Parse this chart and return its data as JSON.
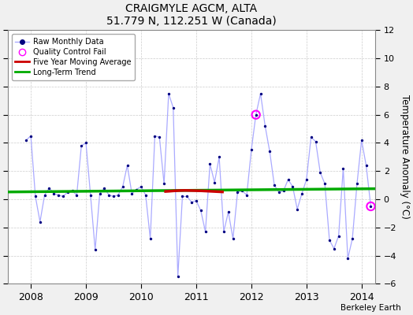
{
  "title": "CRAIGMYLE AGCM, ALTA",
  "subtitle": "51.779 N, 112.251 W (Canada)",
  "ylabel": "Temperature Anomaly (°C)",
  "credit": "Berkeley Earth",
  "ylim": [
    -6,
    12
  ],
  "yticks": [
    -6,
    -4,
    -2,
    0,
    2,
    4,
    6,
    8,
    10,
    12
  ],
  "xlim_start": 2007.58,
  "xlim_end": 2014.25,
  "fig_bg_color": "#f0f0f0",
  "plot_bg_color": "#ffffff",
  "raw_line_color": "#aaaaff",
  "dot_color": "#000080",
  "ma_color": "#cc0000",
  "trend_color": "#00aa00",
  "qc_color": "#ff00ff",
  "grid_color": "#cccccc",
  "monthly_data": [
    [
      2007.917,
      4.2
    ],
    [
      2008.0,
      4.5
    ],
    [
      2008.083,
      0.2
    ],
    [
      2008.167,
      -1.6
    ],
    [
      2008.25,
      0.3
    ],
    [
      2008.333,
      0.8
    ],
    [
      2008.417,
      0.4
    ],
    [
      2008.5,
      0.3
    ],
    [
      2008.583,
      0.2
    ],
    [
      2008.667,
      0.5
    ],
    [
      2008.75,
      0.6
    ],
    [
      2008.833,
      0.3
    ],
    [
      2008.917,
      3.8
    ],
    [
      2009.0,
      4.0
    ],
    [
      2009.083,
      0.3
    ],
    [
      2009.167,
      -3.6
    ],
    [
      2009.25,
      0.4
    ],
    [
      2009.333,
      0.8
    ],
    [
      2009.417,
      0.3
    ],
    [
      2009.5,
      0.2
    ],
    [
      2009.583,
      0.3
    ],
    [
      2009.667,
      0.9
    ],
    [
      2009.75,
      2.4
    ],
    [
      2009.833,
      0.4
    ],
    [
      2009.917,
      0.7
    ],
    [
      2010.0,
      0.9
    ],
    [
      2010.083,
      0.3
    ],
    [
      2010.167,
      -2.8
    ],
    [
      2010.25,
      4.5
    ],
    [
      2010.333,
      4.4
    ],
    [
      2010.417,
      1.1
    ],
    [
      2010.5,
      7.5
    ],
    [
      2010.583,
      6.5
    ],
    [
      2010.667,
      -5.5
    ],
    [
      2010.75,
      0.2
    ],
    [
      2010.833,
      0.2
    ],
    [
      2010.917,
      -0.2
    ],
    [
      2011.0,
      -0.1
    ],
    [
      2011.083,
      -0.8
    ],
    [
      2011.167,
      -2.3
    ],
    [
      2011.25,
      2.5
    ],
    [
      2011.333,
      1.2
    ],
    [
      2011.417,
      3.0
    ],
    [
      2011.5,
      -2.3
    ],
    [
      2011.583,
      -0.9
    ],
    [
      2011.667,
      -2.8
    ],
    [
      2011.75,
      0.5
    ],
    [
      2011.833,
      0.6
    ],
    [
      2011.917,
      0.3
    ],
    [
      2012.0,
      3.5
    ],
    [
      2012.083,
      6.0
    ],
    [
      2012.167,
      7.5
    ],
    [
      2012.25,
      5.2
    ],
    [
      2012.333,
      3.4
    ],
    [
      2012.417,
      1.0
    ],
    [
      2012.5,
      0.5
    ],
    [
      2012.583,
      0.6
    ],
    [
      2012.667,
      1.4
    ],
    [
      2012.75,
      0.9
    ],
    [
      2012.833,
      -0.7
    ],
    [
      2012.917,
      0.4
    ],
    [
      2013.0,
      1.4
    ],
    [
      2013.083,
      4.4
    ],
    [
      2013.167,
      4.1
    ],
    [
      2013.25,
      1.9
    ],
    [
      2013.333,
      1.1
    ],
    [
      2013.417,
      -2.9
    ],
    [
      2013.5,
      -3.5
    ],
    [
      2013.583,
      -2.6
    ],
    [
      2013.667,
      2.2
    ],
    [
      2013.75,
      -4.2
    ],
    [
      2013.833,
      -2.8
    ],
    [
      2013.917,
      1.1
    ],
    [
      2014.0,
      4.2
    ],
    [
      2014.083,
      2.4
    ],
    [
      2014.167,
      -0.5
    ]
  ],
  "ma_data": [
    [
      2010.42,
      0.55
    ],
    [
      2010.5,
      0.57
    ],
    [
      2010.6,
      0.6
    ],
    [
      2010.7,
      0.62
    ],
    [
      2010.8,
      0.63
    ],
    [
      2010.9,
      0.62
    ],
    [
      2011.0,
      0.61
    ],
    [
      2011.1,
      0.6
    ],
    [
      2011.2,
      0.58
    ],
    [
      2011.3,
      0.56
    ],
    [
      2011.4,
      0.54
    ],
    [
      2011.5,
      0.52
    ]
  ],
  "trend_x": [
    2007.58,
    2014.25
  ],
  "trend_y": [
    0.52,
    0.75
  ],
  "qc_points": [
    [
      2012.083,
      6.0
    ],
    [
      2014.167,
      -0.5
    ]
  ],
  "xticks": [
    2008,
    2009,
    2010,
    2011,
    2012,
    2013,
    2014
  ]
}
